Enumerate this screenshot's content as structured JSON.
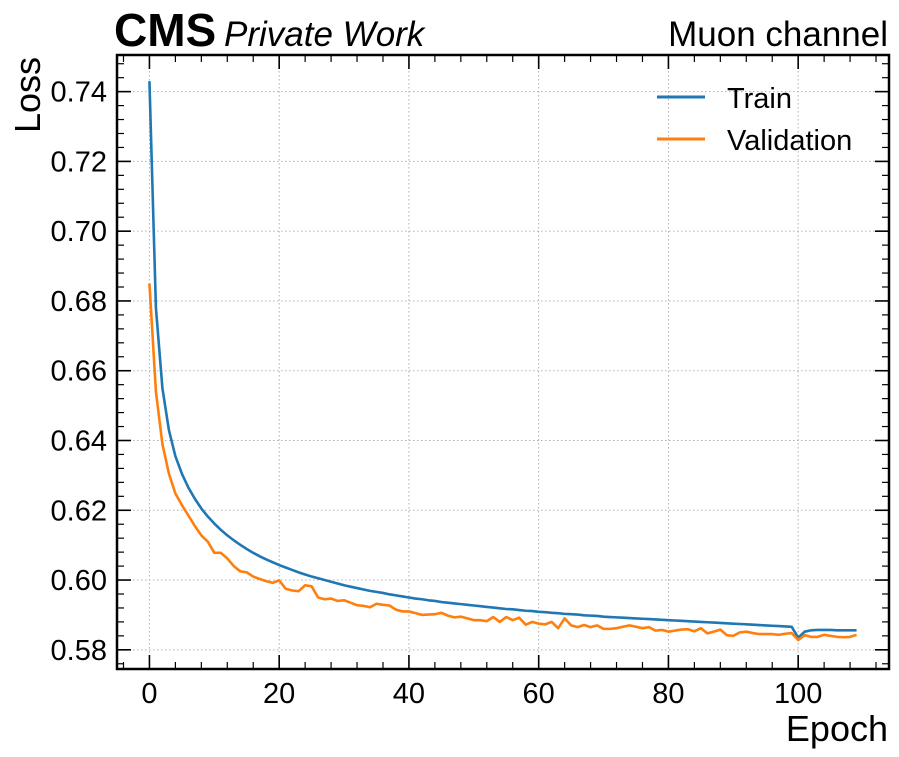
{
  "header": {
    "experiment": "CMS",
    "label": "Private Work",
    "channel": "Muon channel"
  },
  "chart_data": {
    "type": "line",
    "xlabel": "Epoch",
    "ylabel": "Loss",
    "xlim": [
      -5,
      114
    ],
    "ylim": [
      0.5745,
      0.7505
    ],
    "x_ticks": [
      0,
      20,
      40,
      60,
      80,
      100
    ],
    "x_tick_labels": [
      "0",
      "20",
      "40",
      "60",
      "80",
      "100"
    ],
    "y_ticks": [
      0.58,
      0.6,
      0.62,
      0.64,
      0.66,
      0.68,
      0.7,
      0.72,
      0.74
    ],
    "y_tick_labels": [
      "0.58",
      "0.60",
      "0.62",
      "0.64",
      "0.66",
      "0.68",
      "0.70",
      "0.72",
      "0.74"
    ],
    "grid": true,
    "legend_position": "top-right",
    "series": [
      {
        "name": "Train",
        "color": "#1f77b4",
        "x": [
          0,
          1,
          2,
          3,
          4,
          5,
          6,
          7,
          8,
          9,
          10,
          11,
          12,
          13,
          14,
          15,
          16,
          17,
          18,
          19,
          20,
          21,
          22,
          23,
          24,
          25,
          26,
          27,
          28,
          29,
          30,
          31,
          32,
          33,
          34,
          35,
          36,
          37,
          38,
          39,
          40,
          41,
          42,
          43,
          44,
          45,
          46,
          47,
          48,
          49,
          50,
          51,
          52,
          53,
          54,
          55,
          56,
          57,
          58,
          59,
          60,
          61,
          62,
          63,
          64,
          65,
          66,
          67,
          68,
          69,
          70,
          71,
          72,
          73,
          74,
          75,
          76,
          77,
          78,
          79,
          80,
          81,
          82,
          83,
          84,
          85,
          86,
          87,
          88,
          89,
          90,
          91,
          92,
          93,
          94,
          95,
          96,
          97,
          98,
          99,
          100,
          101,
          102,
          103,
          104,
          105,
          106,
          107,
          108,
          109
        ],
        "values": [
          0.743,
          0.678,
          0.655,
          0.643,
          0.6355,
          0.6305,
          0.6265,
          0.6233,
          0.6205,
          0.6182,
          0.6162,
          0.6144,
          0.6128,
          0.6114,
          0.6101,
          0.6089,
          0.6078,
          0.6068,
          0.6059,
          0.6051,
          0.6043,
          0.6036,
          0.6029,
          0.6022,
          0.6016,
          0.601,
          0.6005,
          0.6,
          0.5995,
          0.599,
          0.5985,
          0.5981,
          0.5977,
          0.5973,
          0.5969,
          0.5966,
          0.5963,
          0.5959,
          0.5956,
          0.5953,
          0.595,
          0.5947,
          0.5945,
          0.5942,
          0.594,
          0.5937,
          0.5935,
          0.5933,
          0.5931,
          0.5929,
          0.5927,
          0.5925,
          0.5923,
          0.5921,
          0.5919,
          0.5917,
          0.5916,
          0.5914,
          0.5912,
          0.5911,
          0.5909,
          0.5908,
          0.5906,
          0.5905,
          0.5903,
          0.5902,
          0.5901,
          0.5899,
          0.5898,
          0.5897,
          0.5895,
          0.5894,
          0.5893,
          0.5892,
          0.5891,
          0.589,
          0.5889,
          0.5888,
          0.5887,
          0.5886,
          0.5885,
          0.5884,
          0.5883,
          0.5882,
          0.5881,
          0.588,
          0.5879,
          0.5878,
          0.5877,
          0.5876,
          0.5875,
          0.5874,
          0.5873,
          0.5872,
          0.5871,
          0.587,
          0.5869,
          0.5868,
          0.5867,
          0.5866,
          0.5835,
          0.5852,
          0.5856,
          0.5857,
          0.5857,
          0.5857,
          0.5856,
          0.5856,
          0.5856,
          0.5856
        ]
      },
      {
        "name": "Validation",
        "color": "#ff7f0e",
        "x": [
          0,
          1,
          2,
          3,
          4,
          5,
          6,
          7,
          8,
          9,
          10,
          11,
          12,
          13,
          14,
          15,
          16,
          17,
          18,
          19,
          20,
          21,
          22,
          23,
          24,
          25,
          26,
          27,
          28,
          29,
          30,
          31,
          32,
          33,
          34,
          35,
          36,
          37,
          38,
          39,
          40,
          41,
          42,
          43,
          44,
          45,
          46,
          47,
          48,
          49,
          50,
          51,
          52,
          53,
          54,
          55,
          56,
          57,
          58,
          59,
          60,
          61,
          62,
          63,
          64,
          65,
          66,
          67,
          68,
          69,
          70,
          71,
          72,
          73,
          74,
          75,
          76,
          77,
          78,
          79,
          80,
          81,
          82,
          83,
          84,
          85,
          86,
          87,
          88,
          89,
          90,
          91,
          92,
          93,
          94,
          95,
          96,
          97,
          98,
          99,
          100,
          101,
          102,
          103,
          104,
          105,
          106,
          107,
          108,
          109
        ],
        "values": [
          0.685,
          0.654,
          0.639,
          0.6305,
          0.6248,
          0.6215,
          0.6185,
          0.6155,
          0.6128,
          0.611,
          0.6078,
          0.6078,
          0.6062,
          0.604,
          0.6025,
          0.6022,
          0.601,
          0.6003,
          0.5997,
          0.5992,
          0.5999,
          0.5975,
          0.597,
          0.5968,
          0.5985,
          0.5982,
          0.595,
          0.5945,
          0.5947,
          0.594,
          0.5942,
          0.5935,
          0.5928,
          0.5926,
          0.5922,
          0.5932,
          0.5929,
          0.5927,
          0.5915,
          0.591,
          0.591,
          0.5905,
          0.59,
          0.5901,
          0.5902,
          0.5906,
          0.5898,
          0.5893,
          0.5895,
          0.589,
          0.5885,
          0.5885,
          0.5882,
          0.5894,
          0.588,
          0.5894,
          0.5885,
          0.5892,
          0.5872,
          0.588,
          0.5875,
          0.5873,
          0.588,
          0.5862,
          0.589,
          0.587,
          0.5865,
          0.5871,
          0.5865,
          0.587,
          0.586,
          0.586,
          0.5862,
          0.5866,
          0.587,
          0.5866,
          0.5862,
          0.5865,
          0.5855,
          0.5857,
          0.5852,
          0.5855,
          0.5858,
          0.5859,
          0.5853,
          0.5862,
          0.5847,
          0.5852,
          0.5858,
          0.5842,
          0.584,
          0.585,
          0.5852,
          0.5848,
          0.5845,
          0.5845,
          0.5845,
          0.5843,
          0.5846,
          0.5848,
          0.5828,
          0.5842,
          0.5837,
          0.5837,
          0.5843,
          0.584,
          0.5837,
          0.5836,
          0.5837,
          0.5843
        ]
      }
    ]
  }
}
